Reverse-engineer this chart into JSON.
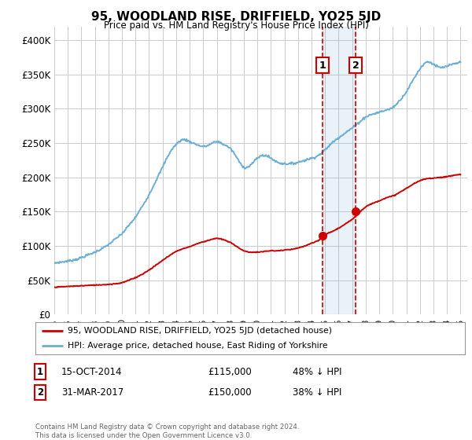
{
  "title": "95, WOODLAND RISE, DRIFFIELD, YO25 5JD",
  "subtitle": "Price paid vs. HM Land Registry's House Price Index (HPI)",
  "ylim": [
    0,
    420000
  ],
  "yticks": [
    0,
    50000,
    100000,
    150000,
    200000,
    250000,
    300000,
    350000,
    400000
  ],
  "ytick_labels": [
    "£0",
    "£50K",
    "£100K",
    "£150K",
    "£200K",
    "£250K",
    "£300K",
    "£350K",
    "£400K"
  ],
  "xlim_start": 1995.0,
  "xlim_end": 2025.5,
  "hpi_color": "#6baed6",
  "price_color": "#cc0000",
  "marker1_date": 2014.79,
  "marker2_date": 2017.25,
  "marker1_price": 115000,
  "marker2_price": 150000,
  "sale1_label": "15-OCT-2014",
  "sale1_price": "£115,000",
  "sale1_hpi": "48% ↓ HPI",
  "sale2_label": "31-MAR-2017",
  "sale2_price": "£150,000",
  "sale2_hpi": "38% ↓ HPI",
  "legend_line1": "95, WOODLAND RISE, DRIFFIELD, YO25 5JD (detached house)",
  "legend_line2": "HPI: Average price, detached house, East Riding of Yorkshire",
  "footnote": "Contains HM Land Registry data © Crown copyright and database right 2024.\nThis data is licensed under the Open Government Licence v3.0.",
  "bg_color": "#ffffff",
  "grid_color": "#cccccc",
  "xticks": [
    1995,
    1996,
    1997,
    1998,
    1999,
    2000,
    2001,
    2002,
    2003,
    2004,
    2005,
    2006,
    2007,
    2008,
    2009,
    2010,
    2011,
    2012,
    2013,
    2014,
    2015,
    2016,
    2017,
    2018,
    2019,
    2020,
    2021,
    2022,
    2023,
    2024,
    2025
  ],
  "hpi_data": [
    [
      1995.0,
      75000
    ],
    [
      1995.5,
      76500
    ],
    [
      1996.0,
      78000
    ],
    [
      1996.5,
      80000
    ],
    [
      1997.0,
      83000
    ],
    [
      1997.5,
      87000
    ],
    [
      1998.0,
      91000
    ],
    [
      1998.5,
      96000
    ],
    [
      1999.0,
      102000
    ],
    [
      1999.5,
      110000
    ],
    [
      2000.0,
      118000
    ],
    [
      2000.5,
      130000
    ],
    [
      2001.0,
      142000
    ],
    [
      2001.5,
      158000
    ],
    [
      2002.0,
      175000
    ],
    [
      2002.5,
      195000
    ],
    [
      2003.0,
      215000
    ],
    [
      2003.5,
      235000
    ],
    [
      2004.0,
      248000
    ],
    [
      2004.5,
      255000
    ],
    [
      2005.0,
      252000
    ],
    [
      2005.5,
      248000
    ],
    [
      2006.0,
      245000
    ],
    [
      2006.5,
      248000
    ],
    [
      2007.0,
      252000
    ],
    [
      2007.5,
      248000
    ],
    [
      2008.0,
      242000
    ],
    [
      2008.5,
      228000
    ],
    [
      2009.0,
      215000
    ],
    [
      2009.5,
      218000
    ],
    [
      2010.0,
      228000
    ],
    [
      2010.5,
      232000
    ],
    [
      2011.0,
      228000
    ],
    [
      2011.5,
      222000
    ],
    [
      2012.0,
      220000
    ],
    [
      2012.5,
      220000
    ],
    [
      2013.0,
      222000
    ],
    [
      2013.5,
      225000
    ],
    [
      2014.0,
      228000
    ],
    [
      2014.5,
      232000
    ],
    [
      2015.0,
      240000
    ],
    [
      2015.5,
      250000
    ],
    [
      2016.0,
      258000
    ],
    [
      2016.5,
      265000
    ],
    [
      2017.0,
      272000
    ],
    [
      2017.5,
      280000
    ],
    [
      2018.0,
      288000
    ],
    [
      2018.5,
      292000
    ],
    [
      2019.0,
      295000
    ],
    [
      2019.5,
      298000
    ],
    [
      2020.0,
      302000
    ],
    [
      2020.5,
      312000
    ],
    [
      2021.0,
      325000
    ],
    [
      2021.5,
      342000
    ],
    [
      2022.0,
      358000
    ],
    [
      2022.5,
      368000
    ],
    [
      2023.0,
      365000
    ],
    [
      2023.5,
      360000
    ],
    [
      2024.0,
      362000
    ],
    [
      2024.5,
      365000
    ],
    [
      2025.0,
      368000
    ]
  ],
  "price_data": [
    [
      1995.0,
      40000
    ],
    [
      1995.5,
      40500
    ],
    [
      1996.0,
      41000
    ],
    [
      1996.5,
      41500
    ],
    [
      1997.0,
      42000
    ],
    [
      1997.5,
      42500
    ],
    [
      1998.0,
      43000
    ],
    [
      1998.5,
      43500
    ],
    [
      1999.0,
      44000
    ],
    [
      1999.5,
      45000
    ],
    [
      2000.0,
      46500
    ],
    [
      2000.5,
      50000
    ],
    [
      2001.0,
      54000
    ],
    [
      2001.5,
      59000
    ],
    [
      2002.0,
      65000
    ],
    [
      2002.5,
      72000
    ],
    [
      2003.0,
      79000
    ],
    [
      2003.5,
      86000
    ],
    [
      2004.0,
      92000
    ],
    [
      2004.5,
      96000
    ],
    [
      2005.0,
      99000
    ],
    [
      2005.5,
      103000
    ],
    [
      2006.0,
      106000
    ],
    [
      2006.5,
      109000
    ],
    [
      2007.0,
      111000
    ],
    [
      2007.5,
      109000
    ],
    [
      2008.0,
      105000
    ],
    [
      2008.5,
      99000
    ],
    [
      2009.0,
      93000
    ],
    [
      2009.5,
      91000
    ],
    [
      2010.0,
      91000
    ],
    [
      2010.5,
      92000
    ],
    [
      2011.0,
      93000
    ],
    [
      2011.5,
      93000
    ],
    [
      2012.0,
      94000
    ],
    [
      2012.5,
      95000
    ],
    [
      2013.0,
      97000
    ],
    [
      2013.5,
      100000
    ],
    [
      2014.0,
      104000
    ],
    [
      2014.5,
      108000
    ],
    [
      2015.0,
      116000
    ],
    [
      2015.5,
      121000
    ],
    [
      2016.0,
      126000
    ],
    [
      2016.5,
      132000
    ],
    [
      2017.0,
      139000
    ],
    [
      2017.5,
      148000
    ],
    [
      2018.0,
      157000
    ],
    [
      2018.5,
      162000
    ],
    [
      2019.0,
      166000
    ],
    [
      2019.5,
      170000
    ],
    [
      2020.0,
      173000
    ],
    [
      2020.5,
      178000
    ],
    [
      2021.0,
      184000
    ],
    [
      2021.5,
      190000
    ],
    [
      2022.0,
      195000
    ],
    [
      2022.5,
      198000
    ],
    [
      2023.0,
      199000
    ],
    [
      2023.5,
      200000
    ],
    [
      2024.0,
      201000
    ],
    [
      2024.5,
      203000
    ],
    [
      2025.0,
      204000
    ]
  ]
}
